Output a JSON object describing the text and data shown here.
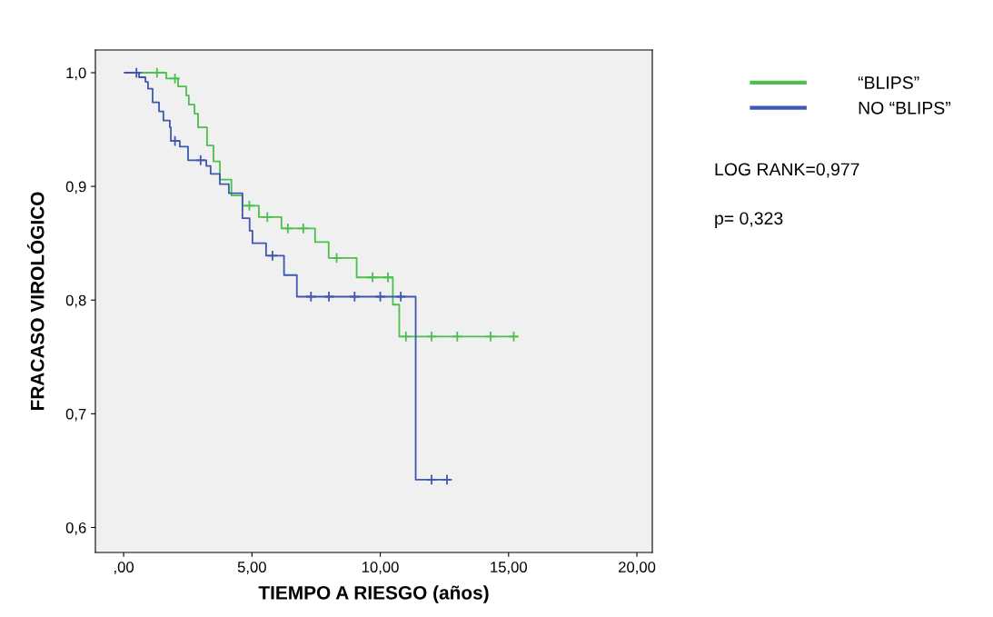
{
  "chart_data": {
    "type": "step",
    "xlabel": "TIEMPO A RIESGO (años)",
    "ylabel": "FRACASO VIROLÓGICO",
    "xlim": [
      -1.1,
      20.6
    ],
    "ylim": [
      0.578,
      1.02
    ],
    "xticks": [
      {
        "value": 0,
        "label": ",00"
      },
      {
        "value": 5,
        "label": "5,00"
      },
      {
        "value": 10,
        "label": "10,00"
      },
      {
        "value": 15,
        "label": "15,00"
      },
      {
        "value": 20,
        "label": "20,00"
      }
    ],
    "yticks": [
      {
        "value": 0.6,
        "label": "0,6"
      },
      {
        "value": 0.7,
        "label": "0,7"
      },
      {
        "value": 0.8,
        "label": "0,8"
      },
      {
        "value": 0.9,
        "label": "0,9"
      },
      {
        "value": 1.0,
        "label": "1,0"
      }
    ],
    "grid": false,
    "legend": "right",
    "marker": "none",
    "line_style": "solid",
    "annotations": [
      "LOG RANK=0,977",
      "p= 0,323"
    ],
    "series": [
      {
        "name": "“BLIPS”",
        "color": "#4cbf4c",
        "x": [
          0.6,
          1.66,
          2.12,
          2.44,
          2.54,
          2.76,
          2.9,
          3.25,
          3.5,
          3.75,
          4.2,
          4.63,
          5.27,
          6.15,
          7.46,
          7.99,
          9.08,
          10.49,
          10.74,
          15.34
        ],
        "values": [
          1.0,
          0.995,
          0.988,
          0.98,
          0.972,
          0.964,
          0.952,
          0.936,
          0.922,
          0.906,
          0.892,
          0.883,
          0.873,
          0.863,
          0.851,
          0.837,
          0.82,
          0.796,
          0.768,
          0.768
        ]
      },
      {
        "name": "NO “BLIPS”",
        "color": "#3f57b0",
        "x": [
          0.04,
          0.6,
          0.85,
          0.95,
          1.13,
          1.38,
          1.55,
          1.8,
          1.84,
          2.19,
          2.51,
          3.22,
          3.39,
          3.75,
          4.1,
          4.63,
          4.91,
          5.02,
          5.55,
          6.25,
          6.75,
          11.38,
          12.72
        ],
        "values": [
          1.0,
          0.996,
          0.992,
          0.986,
          0.974,
          0.966,
          0.958,
          0.952,
          0.94,
          0.935,
          0.923,
          0.918,
          0.911,
          0.902,
          0.894,
          0.872,
          0.861,
          0.85,
          0.839,
          0.822,
          0.803,
          0.642,
          0.642
        ]
      },
      {
        "type": "scatter",
        "marker": "cross",
        "color": "#4cbf4c",
        "x": [
          1.3,
          2.0,
          4.9,
          5.6,
          6.4,
          7.0,
          8.3,
          9.7,
          10.3,
          11.0,
          12.0,
          13.0,
          14.3,
          15.2
        ],
        "values": [
          1.0,
          0.995,
          0.883,
          0.873,
          0.863,
          0.863,
          0.837,
          0.82,
          0.82,
          0.768,
          0.768,
          0.768,
          0.768,
          0.768
        ]
      },
      {
        "type": "scatter",
        "marker": "cross",
        "color": "#3f57b0",
        "x": [
          0.5,
          2.0,
          3.0,
          5.8,
          7.3,
          8.0,
          9.0,
          10.0,
          10.8,
          12.0,
          12.6
        ],
        "values": [
          1.0,
          0.94,
          0.923,
          0.839,
          0.803,
          0.803,
          0.803,
          0.803,
          0.803,
          0.642,
          0.642
        ]
      }
    ]
  }
}
